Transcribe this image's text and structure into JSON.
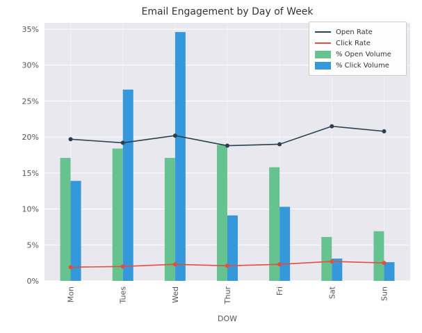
{
  "chart_data": {
    "type": "bar+line combo",
    "title": "Email Engagement by Day of Week",
    "xlabel": "DOW",
    "ylabel": "",
    "categories": [
      "Mon",
      "Tues",
      "Wed",
      "Thur",
      "Fri",
      "Sat",
      "Sun"
    ],
    "yticks": [
      0,
      5,
      10,
      15,
      20,
      25,
      30,
      35
    ],
    "ytick_labels": [
      "0%",
      "5%",
      "10%",
      "15%",
      "20%",
      "25%",
      "30%",
      "35%"
    ],
    "ylim": [
      0,
      35.9
    ],
    "grid": true,
    "legend_position": "upper right",
    "series": [
      {
        "name": "Open Rate",
        "type": "line",
        "color": "#2c3e50",
        "values": [
          19.7,
          19.2,
          20.2,
          18.8,
          19.0,
          21.5,
          20.8
        ]
      },
      {
        "name": "Click Rate",
        "type": "line",
        "color": "#e74c3c",
        "values": [
          1.9,
          2.0,
          2.3,
          2.1,
          2.3,
          2.7,
          2.5
        ]
      },
      {
        "name": "% Open Volume",
        "type": "bar",
        "color": "#66c28f",
        "values": [
          17.1,
          18.4,
          17.1,
          18.9,
          15.8,
          6.1,
          6.9
        ]
      },
      {
        "name": "% Click Volume",
        "type": "bar",
        "color": "#3498db",
        "values": [
          13.9,
          26.6,
          34.6,
          9.1,
          10.3,
          3.1,
          2.6
        ]
      }
    ],
    "colors": {
      "plot_bg": "#e8e8ee",
      "grid": "#ffffff",
      "tick_text": "#555555",
      "title_text": "#333333",
      "legend_border": "#cccccc"
    }
  }
}
